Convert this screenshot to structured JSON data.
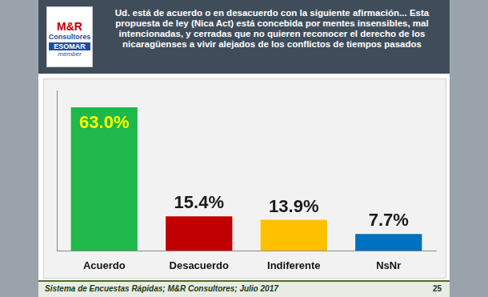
{
  "header": {
    "logo": [
      "M&R",
      "Consultores",
      "ESOMAR",
      "member"
    ]
  },
  "chart_data": {
    "type": "bar",
    "title": "Ud. está de acuerdo o en desacuerdo con la siguiente afirmación... Esta propuesta de ley (Nica Act) está concebida por mentes insensibles, mal intencionadas, y cerradas que no quieren reconocer el derecho de los nicaragüenses a vivir alejados de los conflictos de tiempos pasados",
    "categories": [
      "Acuerdo",
      "Desacuerdo",
      "Indiferente",
      "NsNr"
    ],
    "values": [
      63.0,
      15.4,
      13.9,
      7.7
    ],
    "value_labels": [
      "63.0%",
      "15.4%",
      "13.9%",
      "7.7%"
    ],
    "colors": [
      "#1fb84a",
      "#c00000",
      "#ffc000",
      "#0070c0"
    ],
    "ylim": [
      0,
      70
    ],
    "grid": false,
    "data_labels": true,
    "tick_labels": "x"
  },
  "footer": {
    "source": "Sistema de Encuestas Rápidas; M&R Consultores; Julio 2017",
    "page": "25"
  }
}
